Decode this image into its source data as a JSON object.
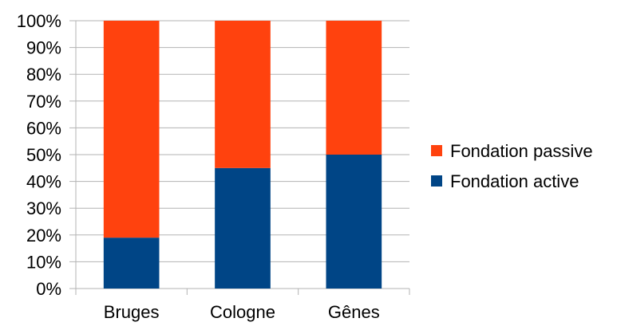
{
  "chart_data": {
    "type": "bar",
    "stacked": "percent",
    "categories": [
      "Bruges",
      "Cologne",
      "Gênes"
    ],
    "series": [
      {
        "name": "Fondation active",
        "color": "#004586",
        "values": [
          19,
          45,
          50
        ]
      },
      {
        "name": "Fondation passive",
        "color": "#FF420E",
        "values": [
          81,
          55,
          50
        ]
      }
    ],
    "y_ticks": [
      "0%",
      "10%",
      "20%",
      "30%",
      "40%",
      "50%",
      "60%",
      "70%",
      "80%",
      "90%",
      "100%"
    ],
    "ylim": [
      0,
      100
    ],
    "grid": true,
    "grid_color": "#b3b3b3",
    "legend_position": "right",
    "legend_order": [
      "Fondation passive",
      "Fondation active"
    ]
  }
}
